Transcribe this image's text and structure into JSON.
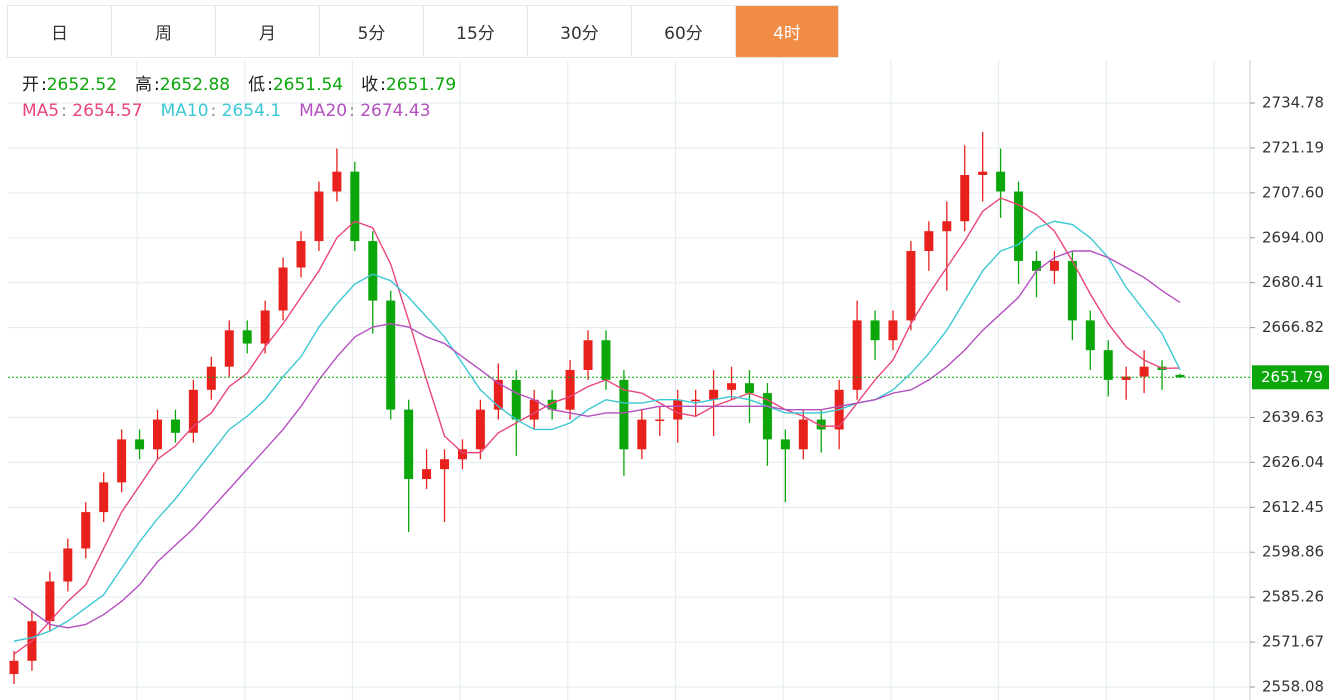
{
  "tabs": [
    "日",
    "周",
    "月",
    "5分",
    "15分",
    "30分",
    "60分",
    "4时"
  ],
  "active_tab": 7,
  "header": {
    "open": "开",
    "high": "高",
    "low": "低",
    "close": "收"
  },
  "chart_data": {
    "type": "candlestick",
    "up_color": "#e8211c",
    "down_color": "#0aa60a",
    "open": [
      2562,
      2566,
      2578,
      2590,
      2600,
      2611,
      2620,
      2633,
      2630,
      2639,
      2635,
      2648,
      2655,
      2666,
      2662,
      2672,
      2685,
      2693,
      2708,
      2714,
      2693,
      2675,
      2642,
      2621,
      2624,
      2627,
      2630,
      2642,
      2651,
      2639,
      2645,
      2642,
      2654,
      2663,
      2651,
      2630,
      2639,
      2639,
      2645,
      2645,
      2648,
      2650,
      2647,
      2633,
      2630,
      2639,
      2636,
      2648,
      2669,
      2663,
      2669,
      2690,
      2696,
      2699,
      2713,
      2714,
      2708,
      2687,
      2684,
      2687,
      2669,
      2660,
      2651,
      2652,
      2655,
      2652.52
    ],
    "high": [
      2569,
      2581,
      2593,
      2603,
      2614,
      2623,
      2636,
      2636,
      2642,
      2642,
      2651,
      2658,
      2669,
      2669,
      2675,
      2688,
      2696,
      2711,
      2721,
      2717,
      2696,
      2678,
      2645,
      2630,
      2630,
      2633,
      2645,
      2656,
      2654,
      2648,
      2648,
      2657,
      2666,
      2666,
      2654,
      2642,
      2643,
      2648,
      2648,
      2654,
      2655,
      2654,
      2650,
      2636,
      2642,
      2642,
      2651,
      2675,
      2672,
      2672,
      2693,
      2699,
      2705,
      2722,
      2726,
      2721,
      2711,
      2690,
      2690,
      2690,
      2672,
      2663,
      2655,
      2660,
      2657,
      2652.88
    ],
    "low": [
      2559,
      2563,
      2575,
      2587,
      2597,
      2608,
      2617,
      2627,
      2627,
      2632,
      2632,
      2645,
      2652,
      2659,
      2659,
      2669,
      2682,
      2690,
      2705,
      2690,
      2665,
      2639,
      2605,
      2618,
      2608,
      2624,
      2627,
      2639,
      2628,
      2636,
      2639,
      2639,
      2651,
      2648,
      2622,
      2627,
      2634,
      2632,
      2640,
      2634,
      2645,
      2638,
      2625,
      2614,
      2627,
      2629,
      2630,
      2645,
      2657,
      2660,
      2666,
      2684,
      2678,
      2696,
      2705,
      2700,
      2680,
      2676,
      2680,
      2663,
      2654,
      2646,
      2645,
      2647,
      2648,
      2651.54
    ],
    "close": [
      2566,
      2578,
      2590,
      2600,
      2611,
      2620,
      2633,
      2630,
      2639,
      2635,
      2648,
      2655,
      2666,
      2662,
      2672,
      2685,
      2693,
      2708,
      2714,
      2693,
      2675,
      2642,
      2621,
      2624,
      2627,
      2630,
      2642,
      2651,
      2639,
      2645,
      2642,
      2654,
      2663,
      2651,
      2630,
      2639,
      2639,
      2645,
      2645,
      2648,
      2650,
      2647,
      2633,
      2630,
      2639,
      2636,
      2648,
      2669,
      2663,
      2669,
      2690,
      2696,
      2699,
      2713,
      2714,
      2708,
      2687,
      2684,
      2687,
      2669,
      2660,
      2651,
      2652,
      2655,
      2654,
      2651.79
    ],
    "series": [
      {
        "name": "MA5",
        "color": "#e9457a",
        "values": [
          2568,
          2572,
          2578,
          2584,
          2589,
          2600,
          2611,
          2619,
          2627,
          2631,
          2637,
          2641,
          2649,
          2653,
          2661,
          2668,
          2676,
          2684,
          2694,
          2699,
          2697,
          2686,
          2669,
          2651,
          2634,
          2629,
          2629,
          2635,
          2638,
          2641,
          2644,
          2646,
          2649,
          2651,
          2648,
          2647,
          2644,
          2641,
          2640,
          2643,
          2645,
          2647,
          2645,
          2642,
          2640,
          2637,
          2637,
          2644,
          2651,
          2657,
          2668,
          2677,
          2685,
          2693,
          2702,
          2706,
          2704,
          2701,
          2696,
          2687,
          2677,
          2668,
          2661,
          2657,
          2654.5,
          2654.57
        ]
      },
      {
        "name": "MA10",
        "color": "#3cc8d4",
        "values": [
          2572,
          2573,
          2575,
          2578,
          2582,
          2586,
          2594,
          2602,
          2609,
          2615,
          2622,
          2629,
          2636,
          2640,
          2645,
          2652,
          2658,
          2667,
          2674,
          2680,
          2683,
          2681,
          2676,
          2670,
          2664,
          2656,
          2648,
          2643,
          2639,
          2636,
          2636,
          2638,
          2642,
          2645,
          2644,
          2644,
          2645,
          2645,
          2644,
          2645,
          2646,
          2645,
          2643,
          2641,
          2641,
          2641,
          2642,
          2644,
          2645,
          2648,
          2653,
          2659,
          2666,
          2675,
          2684,
          2690,
          2692,
          2697,
          2699,
          2698,
          2694,
          2688,
          2679,
          2672,
          2665,
          2654.1
        ]
      },
      {
        "name": "MA20",
        "color": "#b44fc0",
        "values": [
          2585,
          2581,
          2577,
          2576,
          2577,
          2580,
          2584,
          2589,
          2596,
          2601,
          2606,
          2612,
          2618,
          2624,
          2630,
          2636,
          2643,
          2651,
          2658,
          2664,
          2667,
          2668,
          2667,
          2664,
          2662,
          2658,
          2654,
          2650,
          2647,
          2645,
          2642,
          2641,
          2640,
          2641,
          2641,
          2642,
          2643,
          2643,
          2643,
          2643,
          2643,
          2643,
          2643,
          2642,
          2642,
          2642,
          2643,
          2644,
          2645,
          2647,
          2648,
          2651,
          2655,
          2660,
          2666,
          2671,
          2676,
          2684,
          2688,
          2690,
          2690,
          2688,
          2685,
          2682,
          2678,
          2674.43
        ]
      }
    ],
    "ylim": [
      2554.15,
      2747.79
    ],
    "yticks": [
      2734.78,
      2721.19,
      {
        "value": 2707.6,
        "label": "2707.60"
      },
      {
        "value": 2694,
        "label": "2694.00"
      },
      2680.41,
      2666.82,
      2639.63,
      2626.04,
      2612.45,
      2598.86,
      2585.26,
      2571.67,
      2558.08
    ],
    "grid": true
  }
}
